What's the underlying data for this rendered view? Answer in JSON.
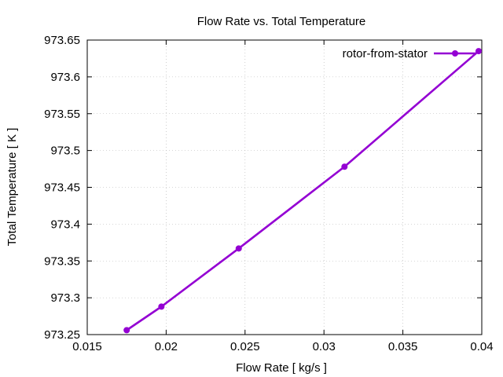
{
  "chart_data": {
    "type": "line",
    "title": "Flow Rate vs. Total Temperature",
    "xlabel": "Flow Rate [ kg/s ]",
    "ylabel": "Total Temperature [ K ]",
    "xlim": [
      0.015,
      0.04
    ],
    "ylim": [
      973.25,
      973.65
    ],
    "x_ticks": [
      "0.015",
      "0.02",
      "0.025",
      "0.03",
      "0.035",
      "0.04"
    ],
    "y_ticks": [
      "973.25",
      "973.3",
      "973.35",
      "973.4",
      "973.45",
      "973.5",
      "973.55",
      "973.6",
      "973.65"
    ],
    "grid": true,
    "legend_position": "top-right",
    "series": [
      {
        "name": "rotor-from-stator",
        "color": "#9400d3",
        "x": [
          0.0175,
          0.0197,
          0.0246,
          0.0313,
          0.0398
        ],
        "y": [
          973.256,
          973.288,
          973.367,
          973.478,
          973.635
        ]
      }
    ]
  }
}
